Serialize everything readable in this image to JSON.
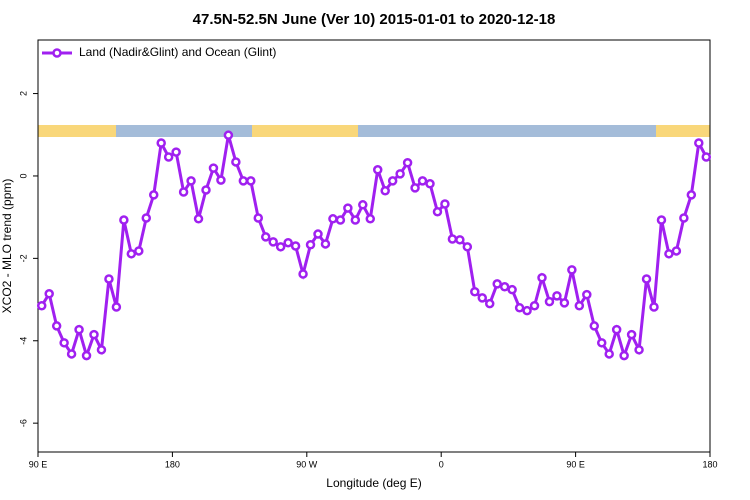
{
  "chart_data": {
    "type": "line",
    "title": "47.5N-52.5N June (Ver 10)   2015-01-01 to 2020-12-18",
    "x_label": "Longitude (deg E)",
    "y_label": "XCO2 - MLO trend (ppm)",
    "x": [
      92.5,
      97.5,
      102.5,
      107.5,
      112.5,
      117.5,
      122.5,
      127.5,
      132.5,
      137.5,
      142.5,
      147.5,
      152.5,
      157.5,
      162.5,
      167.5,
      172.5,
      177.5,
      182.5,
      187.5,
      192.5,
      197.5,
      202.5,
      207.5,
      212.5,
      217.5,
      222.5,
      227.5,
      232.5,
      237.5,
      242.5,
      247.5,
      252.5,
      257.5,
      262.5,
      267.5,
      272.5,
      277.5,
      282.5,
      287.5,
      292.5,
      297.5,
      302.5,
      307.5,
      312.5,
      317.5,
      322.5,
      327.5,
      332.5,
      337.5,
      342.5,
      347.5,
      352.5,
      357.5,
      362.5,
      367.5,
      372.5,
      377.5,
      382.5,
      387.5,
      392.5,
      397.5,
      402.5,
      407.5,
      412.5,
      417.5,
      422.5,
      427.5,
      432.5,
      437.5,
      442.5,
      447.5,
      452.5,
      457.5,
      462.5,
      467.5,
      472.5,
      477.5,
      482.5,
      487.5,
      492.5,
      497.5,
      502.5,
      507.5,
      512.5,
      517.5,
      522.5,
      527.5,
      532.5,
      537.5
    ],
    "series": [
      {
        "name": "Land (Nadir&Glint) and Ocean (Glint)",
        "color": "#a020f0",
        "values": [
          -3.15,
          -2.86,
          -3.64,
          -4.05,
          -4.32,
          -3.73,
          -4.36,
          -3.85,
          -4.22,
          -2.5,
          -3.18,
          -1.07,
          -1.89,
          -1.82,
          -1.02,
          -0.46,
          0.8,
          0.46,
          0.58,
          -0.39,
          -0.12,
          -1.04,
          -0.34,
          0.19,
          -0.1,
          0.99,
          0.34,
          -0.12,
          -0.12,
          -1.02,
          -1.48,
          -1.6,
          -1.72,
          -1.62,
          -1.7,
          -2.38,
          -1.67,
          -1.41,
          -1.65,
          -1.04,
          -1.07,
          -0.78,
          -1.07,
          -0.7,
          -1.04,
          0.15,
          -0.36,
          -0.12,
          0.05,
          0.32,
          -0.29,
          -0.12,
          -0.19,
          -0.87,
          -0.68,
          -1.53,
          -1.55,
          -1.72,
          -2.81,
          -2.96,
          -3.1,
          -2.62,
          -2.69,
          -2.76,
          -3.2,
          -3.27,
          -3.15,
          -2.47,
          -3.05,
          -2.91,
          -3.08,
          -2.28,
          -3.15,
          -2.88,
          -3.64,
          -4.05,
          -4.32,
          -3.73,
          -4.36,
          -3.85,
          -4.22,
          -2.5,
          -3.18,
          -1.07,
          -1.89,
          -1.82,
          -1.02,
          -0.46,
          0.8,
          0.46
        ]
      }
    ],
    "xlim": [
      90,
      540
    ],
    "xticks": [
      {
        "value": 90,
        "label": "90 E"
      },
      180,
      {
        "value": 270,
        "label": "90 W"
      },
      {
        "value": 360,
        "label": "0"
      },
      {
        "value": 450,
        "label": "90 E"
      },
      {
        "value": 540,
        "label": "180"
      }
    ],
    "ylim": [
      -6.7,
      3.3
    ],
    "yticks": [
      -6,
      -4,
      -2,
      0,
      2
    ],
    "legend": "top-left"
  }
}
